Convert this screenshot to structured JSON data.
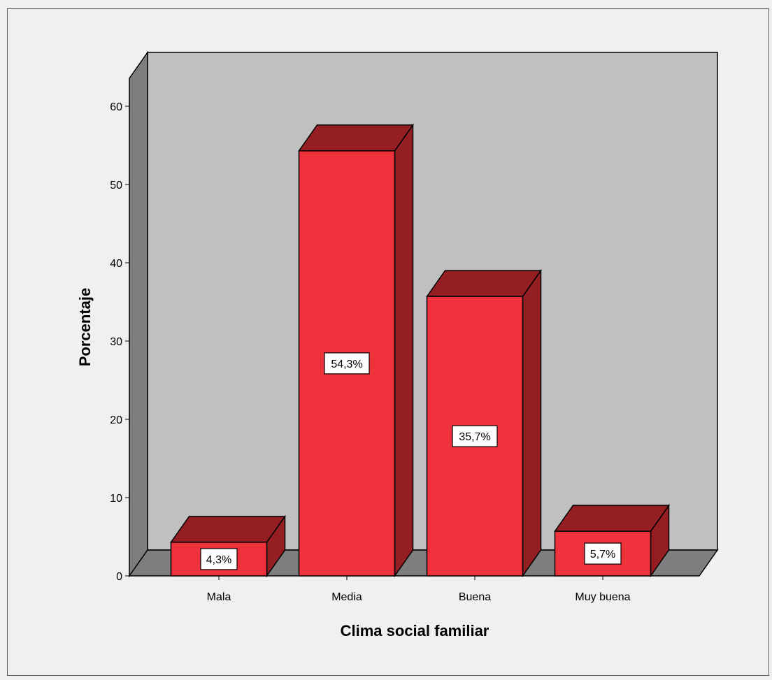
{
  "chart_data": {
    "type": "bar",
    "categories": [
      "Mala",
      "Media",
      "Buena",
      "Muy buena"
    ],
    "values": [
      4.3,
      54.3,
      35.7,
      5.7
    ],
    "data_labels": [
      "4,3%",
      "54,3%",
      "35,7%",
      "5,7%"
    ],
    "title": "",
    "xlabel": "Clima social familiar",
    "ylabel": "Porcentaje",
    "ylim": [
      0,
      60
    ],
    "yticks": [
      0,
      10,
      20,
      30,
      40,
      50,
      60
    ],
    "grid": false,
    "style": "3d",
    "colors": {
      "bar_front": "#ee313b",
      "bar_side": "#941e22",
      "bar_top": "#941e22",
      "back_wall": "#c0c0c0",
      "side_wall": "#7e7e7e",
      "floor": "#7e7e7e",
      "label_box": "#ffffff",
      "background": "#f0f0f0"
    }
  }
}
